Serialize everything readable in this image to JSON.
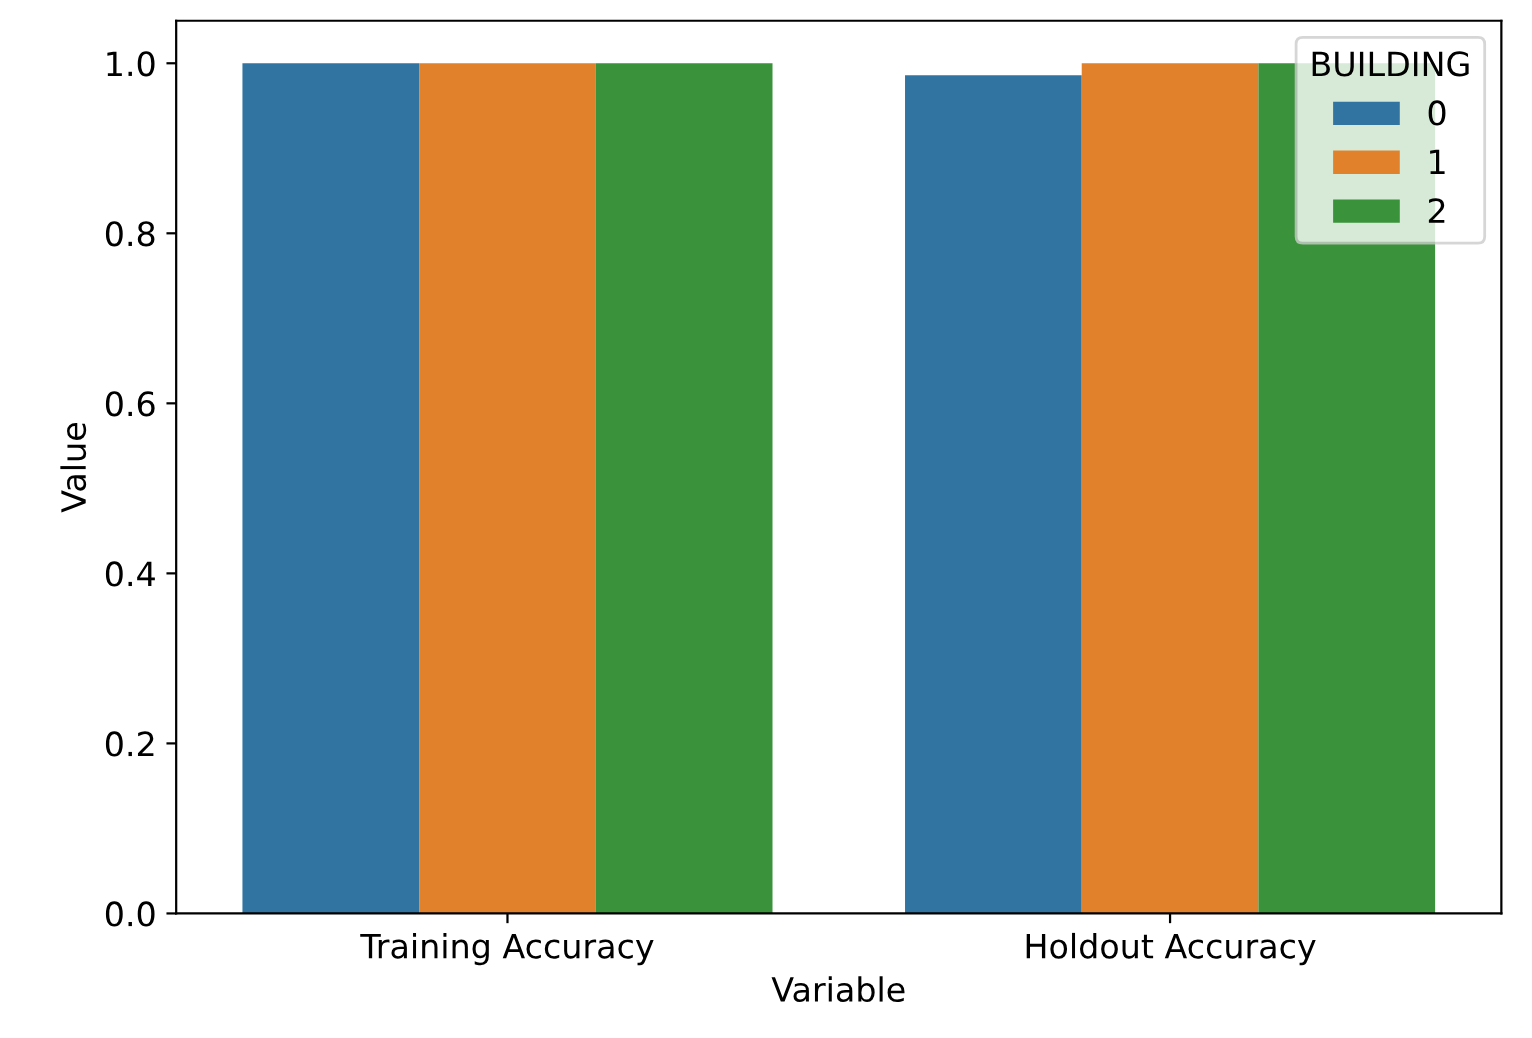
{
  "chart_data": {
    "type": "bar",
    "xlabel": "Variable",
    "ylabel": "Value",
    "legend_title": "BUILDING",
    "categories": [
      "Training Accuracy",
      "Holdout Accuracy"
    ],
    "series": [
      {
        "name": "0",
        "color": "#3274a1",
        "values": [
          1.0,
          0.986
        ]
      },
      {
        "name": "1",
        "color": "#e1812c",
        "values": [
          1.0,
          1.0
        ]
      },
      {
        "name": "2",
        "color": "#3a923a",
        "values": [
          1.0,
          1.0
        ]
      }
    ],
    "ylim": [
      0,
      1.05
    ],
    "yticks": [
      {
        "value": 0,
        "label": "0.0"
      },
      {
        "value": 0.2,
        "label": "0.2"
      },
      {
        "value": 0.4,
        "label": "0.4"
      },
      {
        "value": 0.6,
        "label": "0.6"
      },
      {
        "value": 0.8,
        "label": "0.8"
      },
      {
        "value": 1.0,
        "label": "1.0"
      }
    ],
    "grid": false,
    "legend": "top right"
  }
}
